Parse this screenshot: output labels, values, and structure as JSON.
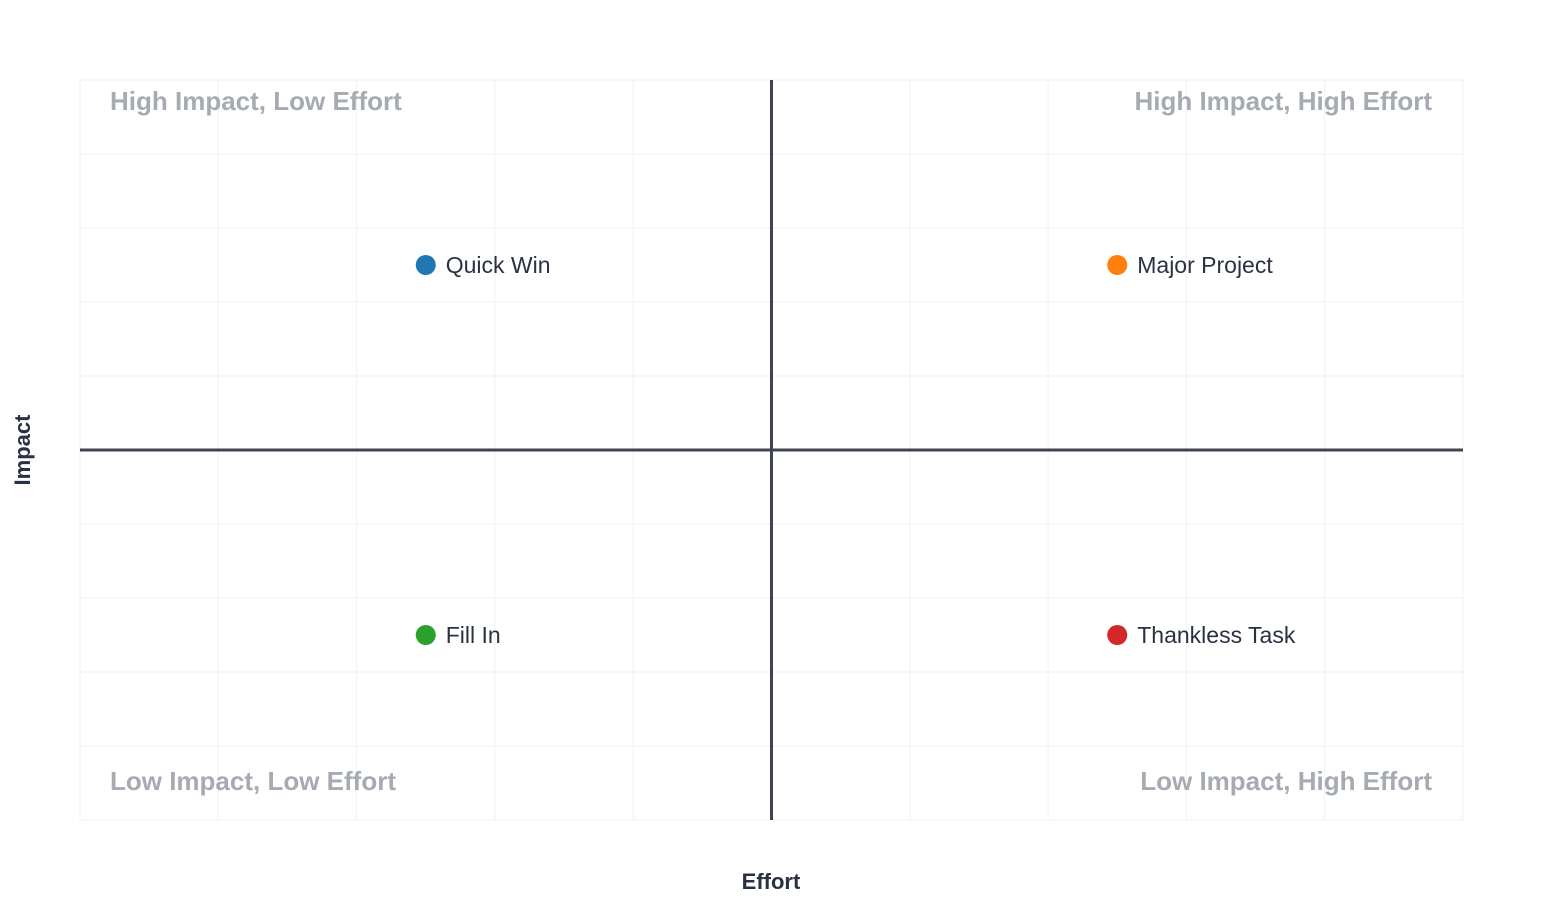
{
  "chart_data": {
    "type": "scatter",
    "title": "",
    "xlabel": "Effort",
    "ylabel": "Impact",
    "xlim": [
      0,
      10
    ],
    "ylim": [
      0,
      10
    ],
    "grid": true,
    "divider_x": 5,
    "divider_y": 5,
    "points": [
      {
        "label": "Quick Win",
        "x": 2.5,
        "y": 7.5,
        "color": "#1f77b4"
      },
      {
        "label": "Major Project",
        "x": 7.5,
        "y": 7.5,
        "color": "#ff7f0e"
      },
      {
        "label": "Fill In",
        "x": 2.5,
        "y": 2.5,
        "color": "#2ca02c"
      },
      {
        "label": "Thankless Task",
        "x": 7.5,
        "y": 2.5,
        "color": "#d62728"
      }
    ],
    "quadrant_labels": {
      "top_left": "High Impact, Low Effort",
      "top_right": "High Impact, High Effort",
      "bottom_left": "Low Impact, Low Effort",
      "bottom_right": "Low Impact, High Effort"
    },
    "colors": {
      "axis_line": "#3f4450",
      "grid_line": "#f1f2f4",
      "quadrant_text": "#a6aab2",
      "point_text": "#2a3142",
      "axis_title": "#2a3142"
    }
  }
}
